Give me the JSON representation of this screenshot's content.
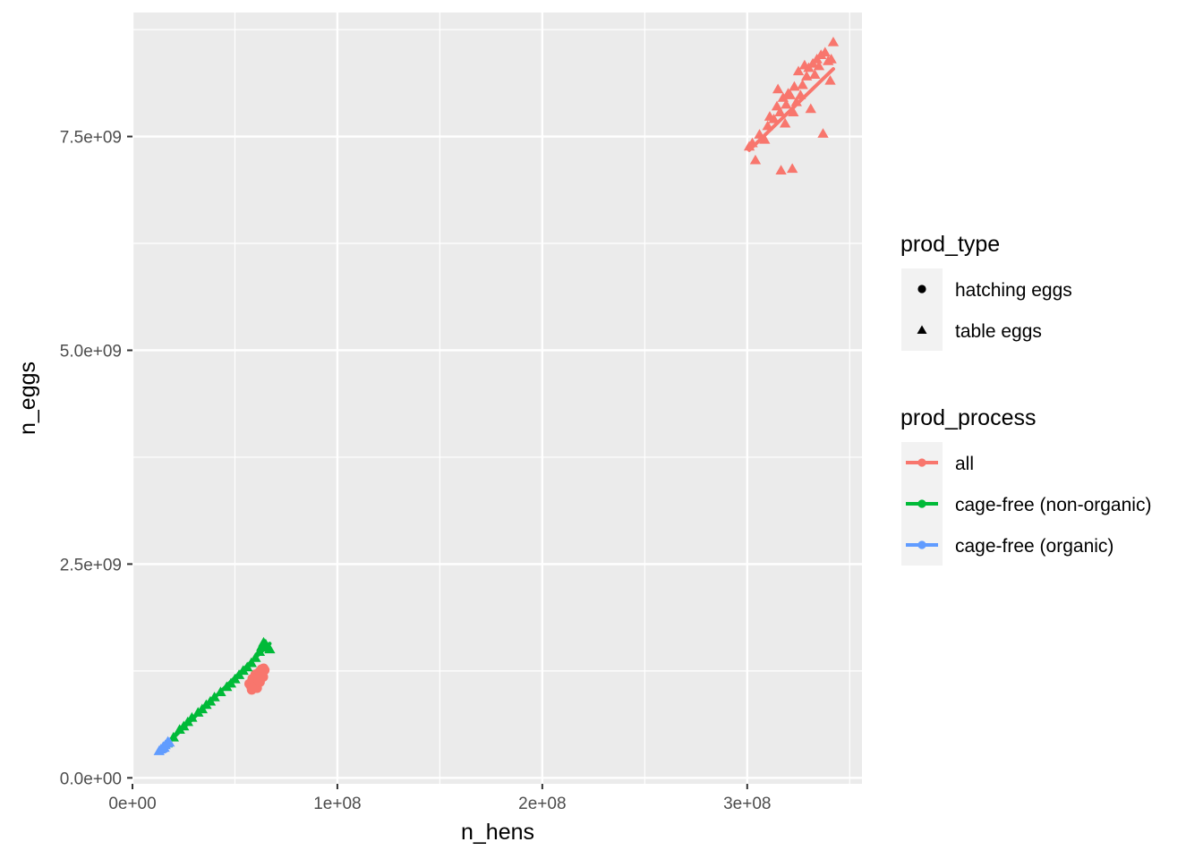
{
  "chart_data": {
    "type": "scatter",
    "title": "",
    "xlabel": "n_hens",
    "ylabel": "n_eggs",
    "xlim": [
      0,
      356000000
    ],
    "ylim": [
      -70000000,
      8950000000
    ],
    "x_ticks": [
      0,
      100000000,
      200000000,
      300000000
    ],
    "x_tick_labels": [
      "0e+00",
      "1e+08",
      "2e+08",
      "3e+08"
    ],
    "y_ticks": [
      0,
      2500000000,
      5000000000,
      7500000000
    ],
    "y_tick_labels": [
      "0.0e+00",
      "2.5e+09",
      "5.0e+09",
      "7.5e+09"
    ],
    "grid": true,
    "legend_position": "right",
    "legends": [
      {
        "title": "prod_type",
        "entries": [
          {
            "label": "hatching eggs",
            "shape": "circle"
          },
          {
            "label": "table eggs",
            "shape": "triangle"
          }
        ]
      },
      {
        "title": "prod_process",
        "entries": [
          {
            "label": "all",
            "color": "#F8766D"
          },
          {
            "label": "cage-free (non-organic)",
            "color": "#00BA38"
          },
          {
            "label": "cage-free (organic)",
            "color": "#619CFF"
          }
        ]
      }
    ],
    "series": [
      {
        "prod_type": "table eggs",
        "prod_process": "all",
        "color": "#F8766D",
        "shape": "triangle",
        "points": [
          [
            301000000,
            7380000000
          ],
          [
            302500000,
            7420000000
          ],
          [
            304000000,
            7220000000
          ],
          [
            306000000,
            7520000000
          ],
          [
            308500000,
            7460000000
          ],
          [
            310000000,
            7620000000
          ],
          [
            311000000,
            7730000000
          ],
          [
            313000000,
            7700000000
          ],
          [
            314500000,
            7850000000
          ],
          [
            315000000,
            8050000000
          ],
          [
            316000000,
            7780000000
          ],
          [
            316500000,
            7100000000
          ],
          [
            317500000,
            7950000000
          ],
          [
            318500000,
            7650000000
          ],
          [
            319000000,
            7870000000
          ],
          [
            320000000,
            8000000000
          ],
          [
            321000000,
            7980000000
          ],
          [
            322000000,
            7120000000
          ],
          [
            322500000,
            7780000000
          ],
          [
            323000000,
            8080000000
          ],
          [
            324000000,
            7900000000
          ],
          [
            325000000,
            8260000000
          ],
          [
            326000000,
            7980000000
          ],
          [
            327000000,
            8100000000
          ],
          [
            328000000,
            8330000000
          ],
          [
            329000000,
            8200000000
          ],
          [
            330000000,
            8300000000
          ],
          [
            331000000,
            7820000000
          ],
          [
            332000000,
            8350000000
          ],
          [
            333000000,
            8220000000
          ],
          [
            334000000,
            8400000000
          ],
          [
            335000000,
            8320000000
          ],
          [
            336000000,
            8450000000
          ],
          [
            337000000,
            7530000000
          ],
          [
            338000000,
            8480000000
          ],
          [
            339500000,
            8380000000
          ],
          [
            340500000,
            8150000000
          ],
          [
            341000000,
            8400000000
          ],
          [
            342000000,
            8600000000
          ]
        ],
        "trend": [
          [
            301000000,
            7340000000
          ],
          [
            342000000,
            8290000000
          ]
        ]
      },
      {
        "prod_type": "hatching eggs",
        "prod_process": "all",
        "color": "#F8766D",
        "shape": "circle",
        "points": [
          [
            57000000,
            1100000000
          ],
          [
            57800000,
            1070000000
          ],
          [
            58500000,
            1160000000
          ],
          [
            59000000,
            1050000000
          ],
          [
            59500000,
            1130000000
          ],
          [
            60000000,
            1210000000
          ],
          [
            60500000,
            1090000000
          ],
          [
            61000000,
            1180000000
          ],
          [
            61500000,
            1140000000
          ],
          [
            62000000,
            1240000000
          ],
          [
            62500000,
            1200000000
          ],
          [
            63000000,
            1270000000
          ],
          [
            63500000,
            1230000000
          ],
          [
            64000000,
            1280000000
          ],
          [
            64500000,
            1260000000
          ],
          [
            58200000,
            1030000000
          ],
          [
            60800000,
            1050000000
          ],
          [
            62200000,
            1120000000
          ],
          [
            63800000,
            1180000000
          ]
        ],
        "trend": [
          [
            57000000,
            1080000000
          ],
          [
            64500000,
            1260000000
          ]
        ]
      },
      {
        "prod_type": "table eggs",
        "prod_process": "cage-free (non-organic)",
        "color": "#00BA38",
        "shape": "triangle",
        "points": [
          [
            17000000,
            400000000
          ],
          [
            20000000,
            470000000
          ],
          [
            23000000,
            560000000
          ],
          [
            25000000,
            600000000
          ],
          [
            27000000,
            650000000
          ],
          [
            29000000,
            700000000
          ],
          [
            32000000,
            760000000
          ],
          [
            34000000,
            800000000
          ],
          [
            36000000,
            850000000
          ],
          [
            38000000,
            890000000
          ],
          [
            40000000,
            940000000
          ],
          [
            43000000,
            1000000000
          ],
          [
            46000000,
            1060000000
          ],
          [
            48000000,
            1100000000
          ],
          [
            50000000,
            1150000000
          ],
          [
            52000000,
            1200000000
          ],
          [
            54000000,
            1250000000
          ],
          [
            56000000,
            1290000000
          ],
          [
            58000000,
            1340000000
          ],
          [
            60000000,
            1400000000
          ],
          [
            62000000,
            1470000000
          ],
          [
            63000000,
            1530000000
          ],
          [
            64000000,
            1580000000
          ],
          [
            65000000,
            1560000000
          ],
          [
            66000000,
            1520000000
          ],
          [
            67000000,
            1500000000
          ]
        ],
        "trend": [
          [
            17000000,
            400000000
          ],
          [
            67000000,
            1570000000
          ]
        ]
      },
      {
        "prod_type": "table eggs",
        "prod_process": "cage-free (organic)",
        "color": "#619CFF",
        "shape": "triangle",
        "points": [
          [
            13000000,
            310000000
          ],
          [
            13800000,
            330000000
          ],
          [
            14500000,
            340000000
          ],
          [
            15000000,
            360000000
          ],
          [
            15500000,
            350000000
          ],
          [
            16000000,
            380000000
          ],
          [
            16800000,
            400000000
          ],
          [
            17300000,
            420000000
          ],
          [
            18000000,
            410000000
          ]
        ],
        "trend": [
          [
            13000000,
            310000000
          ],
          [
            18000000,
            420000000
          ]
        ]
      }
    ]
  }
}
